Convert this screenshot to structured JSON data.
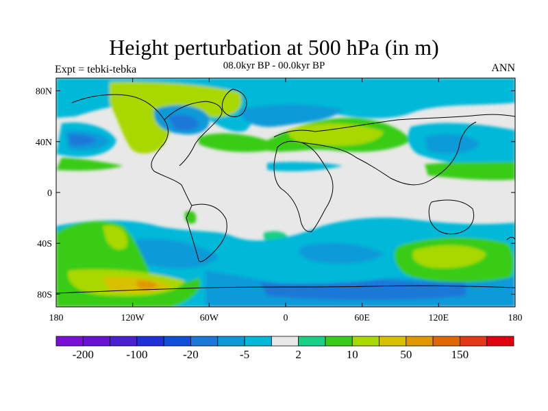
{
  "title": "Height perturbation at 500 hPa (in m)",
  "subtitle": "08.0kyr BP - 00.0kyr BP",
  "left_label": "Expt = tebki-tebka",
  "right_label": "ANN",
  "map": {
    "projection": "cylindrical-equidistant",
    "lon_range": [
      -180,
      180
    ],
    "lat_range": [
      -90,
      90
    ],
    "background_color": "#e8e8e8",
    "coastline_color": "#000000",
    "lat_ticks": [
      {
        "value": 80,
        "label": "80N"
      },
      {
        "value": 40,
        "label": "40N"
      },
      {
        "value": 0,
        "label": "0"
      },
      {
        "value": -40,
        "label": "40S"
      },
      {
        "value": -80,
        "label": "80S"
      }
    ],
    "lon_ticks": [
      {
        "value": -180,
        "label": "180"
      },
      {
        "value": -120,
        "label": "120W"
      },
      {
        "value": -60,
        "label": "60W"
      },
      {
        "value": 0,
        "label": "0"
      },
      {
        "value": 60,
        "label": "60E"
      },
      {
        "value": 120,
        "label": "120E"
      },
      {
        "value": 180,
        "label": "180"
      }
    ]
  },
  "colorbar": {
    "colors": [
      "#7a10d8",
      "#6a12d4",
      "#4a20d0",
      "#2030d8",
      "#1050d8",
      "#1a78d8",
      "#0a9ad8",
      "#00b8d8",
      "#e8e8e8",
      "#18d084",
      "#38cc18",
      "#a8d800",
      "#d8c000",
      "#e09800",
      "#e06800",
      "#e03818",
      "#e00010"
    ],
    "labels": [
      {
        "edge": 1,
        "text": "-200"
      },
      {
        "edge": 3,
        "text": "-100"
      },
      {
        "edge": 5,
        "text": "-20"
      },
      {
        "edge": 7,
        "text": "-5"
      },
      {
        "edge": 9,
        "text": "2"
      },
      {
        "edge": 11,
        "text": "10"
      },
      {
        "edge": 13,
        "text": "50"
      },
      {
        "edge": 15,
        "text": "150"
      }
    ]
  }
}
